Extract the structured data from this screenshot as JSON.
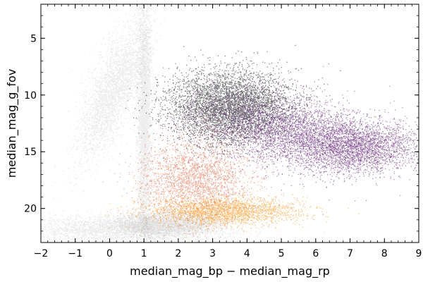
{
  "chart_data": {
    "type": "scatter",
    "title": "",
    "xlabel": "median_mag_bp − median_mag_rp",
    "ylabel": "median_mag_g_fov",
    "xlim": [
      -2,
      9
    ],
    "ylim": [
      23,
      2
    ],
    "y_inverted": true,
    "x_ticks": [
      -2,
      -1,
      0,
      1,
      2,
      3,
      4,
      5,
      6,
      7,
      8,
      9
    ],
    "x_tick_labels": [
      "−2",
      "−1",
      "0",
      "1",
      "2",
      "3",
      "4",
      "5",
      "6",
      "7",
      "8",
      "9"
    ],
    "y_ticks": [
      5,
      10,
      15,
      20
    ],
    "y_tick_labels": [
      "5",
      "10",
      "15",
      "20"
    ],
    "grid": false,
    "legend": "none",
    "layers": [
      {
        "role": "background density (all sources)",
        "style": "grayscale density",
        "color": "#3a3a3a",
        "components": [
          {
            "x_center": 0.1,
            "y_center": 9.5,
            "x_spread": 0.35,
            "y_spread": 3.0,
            "slope": -0.12,
            "weight": 0.22
          },
          {
            "x_center": 1.0,
            "y_center": 12.0,
            "x_spread": 0.1,
            "y_spread": 5.5,
            "slope": 0.0,
            "weight": 0.3
          },
          {
            "x_center": 1.6,
            "y_center": 21.3,
            "x_spread": 0.7,
            "y_spread": 0.5,
            "slope": 0.0,
            "weight": 0.25
          },
          {
            "x_center": 0.5,
            "y_center": 21.8,
            "x_spread": 1.6,
            "y_spread": 0.6,
            "slope": 0.0,
            "weight": 0.23
          }
        ]
      },
      {
        "role": "highlighted subset",
        "style": "colored density (inferno-like)",
        "colors": [
          "#000004",
          "#2a0b52",
          "#57106e",
          "#8a226a",
          "#bc3754",
          "#e45a31",
          "#f98e09",
          "#fbb61a"
        ],
        "components": [
          {
            "x_center": 3.5,
            "y_center": 11.0,
            "x_spread": 0.9,
            "y_spread": 1.6,
            "slope": 0.0,
            "weight": 0.3,
            "level": 0.05
          },
          {
            "x_center": 5.2,
            "y_center": 13.2,
            "x_spread": 1.3,
            "y_spread": 1.7,
            "slope": 0.3,
            "weight": 0.25,
            "level": 0.22
          },
          {
            "x_center": 7.2,
            "y_center": 14.5,
            "x_spread": 0.9,
            "y_spread": 1.1,
            "slope": 0.0,
            "weight": 0.15,
            "level": 0.32
          },
          {
            "x_center": 2.5,
            "y_center": 17.5,
            "x_spread": 0.8,
            "y_spread": 1.8,
            "slope": 0.0,
            "weight": 0.15,
            "level": 0.78
          },
          {
            "x_center": 3.3,
            "y_center": 20.2,
            "x_spread": 1.1,
            "y_spread": 0.6,
            "slope": 0.0,
            "weight": 0.15,
            "level": 0.92
          }
        ]
      }
    ]
  }
}
